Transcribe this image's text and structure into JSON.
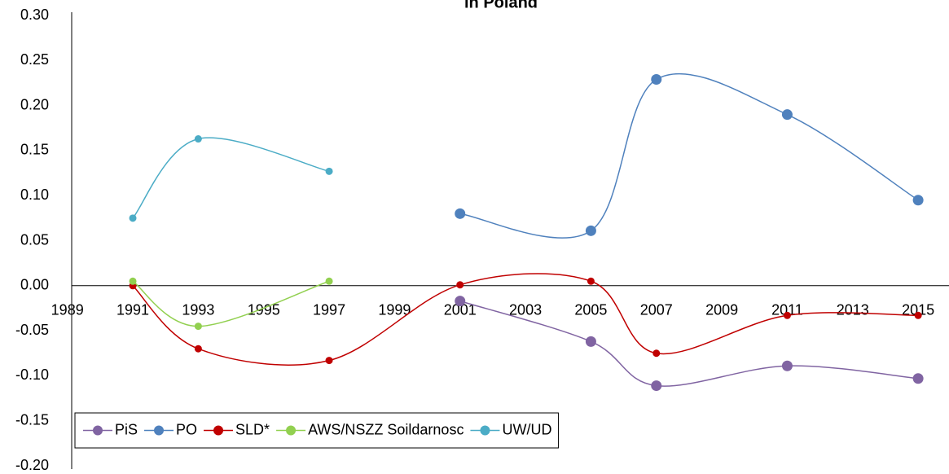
{
  "chart_data": {
    "type": "line",
    "title": "in Poland",
    "x": [
      1991,
      1993,
      1997,
      2001,
      2005,
      2007,
      2011,
      2015
    ],
    "series": [
      {
        "name": "PiS",
        "color": "#8064a2",
        "values": [
          null,
          null,
          null,
          -0.017,
          -0.062,
          -0.111,
          -0.089,
          -0.103
        ]
      },
      {
        "name": "PO",
        "color": "#4f81bd",
        "values": [
          null,
          null,
          null,
          0.08,
          0.061,
          0.229,
          0.19,
          0.095
        ]
      },
      {
        "name": "SLD*",
        "color": "#c00000",
        "values": [
          0.0,
          -0.07,
          -0.083,
          0.001,
          0.005,
          -0.075,
          -0.033,
          -0.033
        ]
      },
      {
        "name": "AWS/NSZZ Soildarnosc",
        "color": "#92d050",
        "values": [
          0.005,
          -0.045,
          0.005,
          null,
          null,
          null,
          null,
          null
        ]
      },
      {
        "name": "UW/UD",
        "color": "#4bacc6",
        "values": [
          0.075,
          0.163,
          0.127,
          null,
          null,
          null,
          null,
          null
        ]
      }
    ],
    "xlim": [
      1989,
      2016
    ],
    "xticks": [
      1989,
      1991,
      1993,
      1995,
      1997,
      1999,
      2001,
      2003,
      2005,
      2007,
      2009,
      2011,
      2013,
      2015
    ],
    "ylim": [
      -0.2,
      0.3
    ],
    "yticks": [
      {
        "value": -0.2,
        "label": "-0.20"
      },
      {
        "value": -0.15,
        "label": "-0.15"
      },
      {
        "value": -0.1,
        "label": "-0.10"
      },
      {
        "value": -0.05,
        "label": "-0.05"
      },
      {
        "value": 0,
        "label": "0.00"
      },
      {
        "value": 0.05,
        "label": "0.05"
      },
      {
        "value": 0.1,
        "label": "0.10"
      },
      {
        "value": 0.15,
        "label": "0.15"
      },
      {
        "value": 0.2,
        "label": "0.20"
      },
      {
        "value": 0.25,
        "label": "0.25"
      },
      {
        "value": 0.3,
        "label": "0.30"
      }
    ],
    "grid": false,
    "legend": "lower left"
  }
}
